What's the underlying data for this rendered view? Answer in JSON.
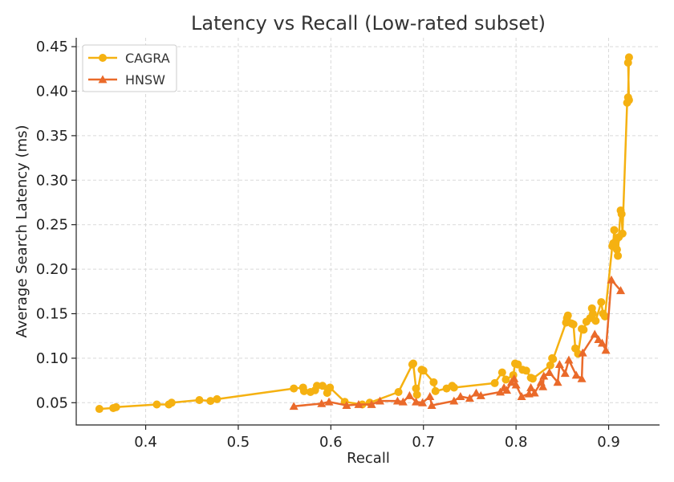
{
  "chart_data": {
    "type": "line",
    "title": "Latency vs Recall (Low-rated subset)",
    "xlabel": "Recall",
    "ylabel": "Average Search Latency (ms)",
    "xlim": [
      0.325,
      0.955
    ],
    "ylim": [
      0.025,
      0.46
    ],
    "xticks": [
      0.4,
      0.5,
      0.6,
      0.7,
      0.8,
      0.9
    ],
    "xtick_labels": [
      "0.4",
      "0.5",
      "0.6",
      "0.7",
      "0.8",
      "0.9"
    ],
    "yticks": [
      0.05,
      0.1,
      0.15,
      0.2,
      0.25,
      0.3,
      0.35,
      0.4,
      0.45
    ],
    "ytick_labels": [
      "0.05",
      "0.10",
      "0.15",
      "0.20",
      "0.25",
      "0.30",
      "0.35",
      "0.40",
      "0.45"
    ],
    "grid": true,
    "legend_position": "top-left",
    "series": [
      {
        "name": "CAGRA",
        "color": "#f5b111",
        "marker": "circle",
        "points": [
          [
            0.35,
            0.043
          ],
          [
            0.365,
            0.044
          ],
          [
            0.368,
            0.045
          ],
          [
            0.412,
            0.048
          ],
          [
            0.425,
            0.048
          ],
          [
            0.428,
            0.05
          ],
          [
            0.458,
            0.053
          ],
          [
            0.47,
            0.052
          ],
          [
            0.477,
            0.054
          ],
          [
            0.56,
            0.066
          ],
          [
            0.57,
            0.067
          ],
          [
            0.571,
            0.063
          ],
          [
            0.578,
            0.062
          ],
          [
            0.583,
            0.064
          ],
          [
            0.585,
            0.069
          ],
          [
            0.591,
            0.069
          ],
          [
            0.596,
            0.061
          ],
          [
            0.598,
            0.066
          ],
          [
            0.599,
            0.067
          ],
          [
            0.615,
            0.051
          ],
          [
            0.634,
            0.048
          ],
          [
            0.642,
            0.05
          ],
          [
            0.673,
            0.062
          ],
          [
            0.688,
            0.093
          ],
          [
            0.689,
            0.094
          ],
          [
            0.692,
            0.066
          ],
          [
            0.693,
            0.059
          ],
          [
            0.698,
            0.087
          ],
          [
            0.7,
            0.086
          ],
          [
            0.711,
            0.073
          ],
          [
            0.713,
            0.063
          ],
          [
            0.725,
            0.066
          ],
          [
            0.731,
            0.069
          ],
          [
            0.733,
            0.067
          ],
          [
            0.777,
            0.072
          ],
          [
            0.785,
            0.084
          ],
          [
            0.789,
            0.076
          ],
          [
            0.797,
            0.081
          ],
          [
            0.799,
            0.094
          ],
          [
            0.802,
            0.093
          ],
          [
            0.807,
            0.087
          ],
          [
            0.811,
            0.086
          ],
          [
            0.816,
            0.078
          ],
          [
            0.818,
            0.077
          ],
          [
            0.837,
            0.092
          ],
          [
            0.839,
            0.1
          ],
          [
            0.84,
            0.099
          ],
          [
            0.854,
            0.14
          ],
          [
            0.855,
            0.145
          ],
          [
            0.856,
            0.148
          ],
          [
            0.86,
            0.139
          ],
          [
            0.862,
            0.138
          ],
          [
            0.864,
            0.111
          ],
          [
            0.867,
            0.105
          ],
          [
            0.871,
            0.133
          ],
          [
            0.873,
            0.132
          ],
          [
            0.876,
            0.141
          ],
          [
            0.88,
            0.145
          ],
          [
            0.882,
            0.156
          ],
          [
            0.883,
            0.15
          ],
          [
            0.886,
            0.142
          ],
          [
            0.892,
            0.163
          ],
          [
            0.894,
            0.15
          ],
          [
            0.896,
            0.147
          ],
          [
            0.904,
            0.226
          ],
          [
            0.905,
            0.229
          ],
          [
            0.906,
            0.244
          ],
          [
            0.908,
            0.232
          ],
          [
            0.909,
            0.222
          ],
          [
            0.91,
            0.215
          ],
          [
            0.911,
            0.236
          ],
          [
            0.913,
            0.266
          ],
          [
            0.914,
            0.262
          ],
          [
            0.915,
            0.24
          ],
          [
            0.92,
            0.387
          ],
          [
            0.921,
            0.393
          ],
          [
            0.922,
            0.438
          ],
          [
            0.921,
            0.432
          ],
          [
            0.922,
            0.39
          ]
        ]
      },
      {
        "name": "HNSW",
        "color": "#ea6a2a",
        "marker": "triangle",
        "points": [
          [
            0.56,
            0.046
          ],
          [
            0.59,
            0.049
          ],
          [
            0.598,
            0.051
          ],
          [
            0.617,
            0.047
          ],
          [
            0.63,
            0.048
          ],
          [
            0.644,
            0.048
          ],
          [
            0.653,
            0.052
          ],
          [
            0.672,
            0.052
          ],
          [
            0.678,
            0.051
          ],
          [
            0.685,
            0.058
          ],
          [
            0.692,
            0.051
          ],
          [
            0.699,
            0.05
          ],
          [
            0.707,
            0.057
          ],
          [
            0.709,
            0.047
          ],
          [
            0.733,
            0.052
          ],
          [
            0.74,
            0.057
          ],
          [
            0.75,
            0.055
          ],
          [
            0.757,
            0.061
          ],
          [
            0.762,
            0.058
          ],
          [
            0.783,
            0.062
          ],
          [
            0.787,
            0.067
          ],
          [
            0.79,
            0.064
          ],
          [
            0.795,
            0.073
          ],
          [
            0.798,
            0.077
          ],
          [
            0.8,
            0.07
          ],
          [
            0.806,
            0.057
          ],
          [
            0.814,
            0.06
          ],
          [
            0.816,
            0.067
          ],
          [
            0.82,
            0.061
          ],
          [
            0.827,
            0.073
          ],
          [
            0.829,
            0.068
          ],
          [
            0.83,
            0.08
          ],
          [
            0.836,
            0.084
          ],
          [
            0.845,
            0.073
          ],
          [
            0.847,
            0.093
          ],
          [
            0.853,
            0.083
          ],
          [
            0.857,
            0.098
          ],
          [
            0.865,
            0.081
          ],
          [
            0.871,
            0.077
          ],
          [
            0.872,
            0.106
          ],
          [
            0.885,
            0.127
          ],
          [
            0.889,
            0.121
          ],
          [
            0.893,
            0.117
          ],
          [
            0.897,
            0.109
          ],
          [
            0.903,
            0.188
          ],
          [
            0.913,
            0.176
          ]
        ]
      }
    ]
  }
}
